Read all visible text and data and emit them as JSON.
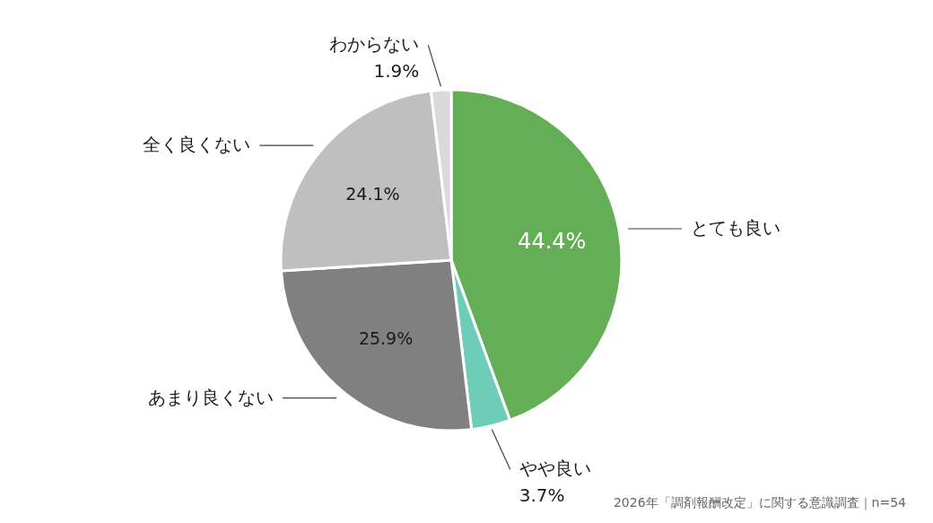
{
  "chart_data": {
    "type": "pie",
    "categories": [
      "とても良い",
      "やや良い",
      "あまり良くない",
      "全く良くない",
      "わからない"
    ],
    "values": [
      44.4,
      3.7,
      25.9,
      24.1,
      1.9
    ],
    "colors": [
      "#64ae56",
      "#6ecdb8",
      "#808080",
      "#bfbfbf",
      "#d9d9d9"
    ],
    "value_labels": [
      "44.4%",
      "3.7%",
      "25.9%",
      "24.1%",
      "1.9%"
    ],
    "annotations": [
      "2026年「調剤報酬改定」に関する意識調査｜n=54"
    ]
  }
}
